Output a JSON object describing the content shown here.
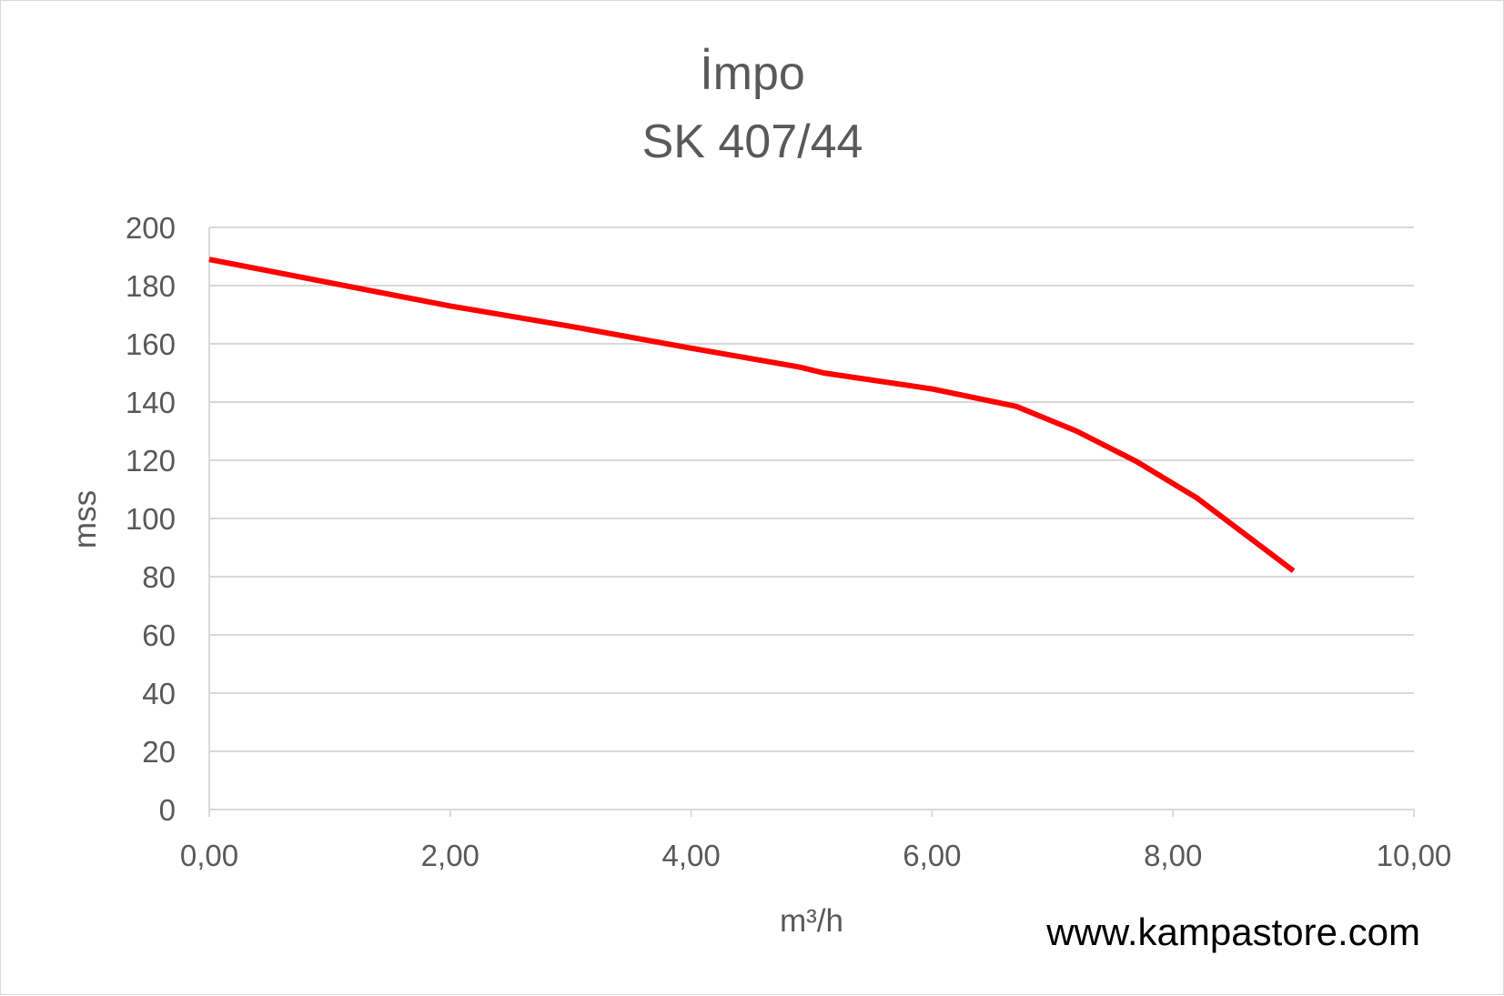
{
  "chart_data": {
    "type": "line",
    "title": "İmpo",
    "subtitle": "SK 407/44",
    "xlabel": "m³/h",
    "ylabel": "mss",
    "xlim": [
      0,
      10
    ],
    "ylim": [
      0,
      200
    ],
    "x_ticks": [
      "0,00",
      "2,00",
      "4,00",
      "6,00",
      "8,00",
      "10,00"
    ],
    "y_ticks": [
      "0",
      "20",
      "40",
      "60",
      "80",
      "100",
      "120",
      "140",
      "160",
      "180",
      "200"
    ],
    "grid": true,
    "legend": "none",
    "series": [
      {
        "color": "#ff0000",
        "points": [
          [
            0,
            189
          ],
          [
            1,
            181
          ],
          [
            2,
            173
          ],
          [
            3,
            166
          ],
          [
            4,
            158.5
          ],
          [
            4.9,
            152
          ],
          [
            5.1,
            150
          ],
          [
            6,
            144.5
          ],
          [
            6.7,
            138.5
          ],
          [
            7.2,
            130
          ],
          [
            7.7,
            119.5
          ],
          [
            8.2,
            107
          ],
          [
            9,
            82
          ]
        ]
      }
    ]
  },
  "watermark": "www.kampastore.com",
  "colors": {
    "line": "#ff0000",
    "grid": "#d9d9d9",
    "text": "#595959"
  }
}
